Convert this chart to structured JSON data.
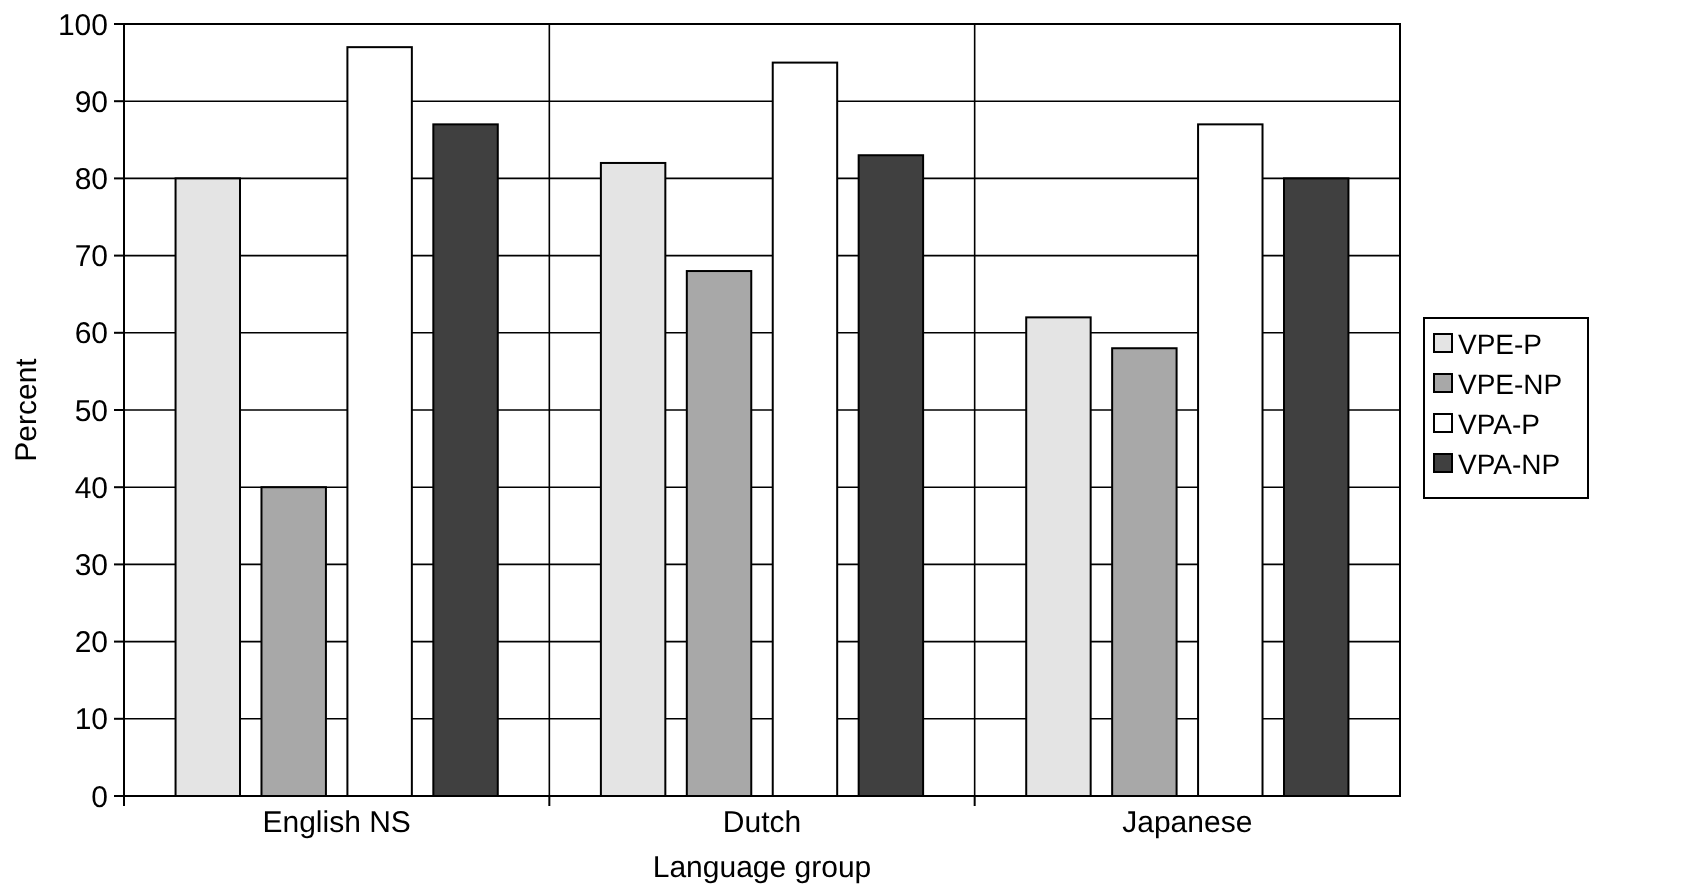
{
  "chart_data": {
    "type": "bar",
    "xlabel": "Language group",
    "ylabel": "Percent",
    "categories": [
      "English NS",
      "Dutch",
      "Japanese"
    ],
    "series": [
      {
        "name": "VPE-P",
        "color": "#e4e4e4",
        "values": [
          80,
          82,
          62
        ]
      },
      {
        "name": "VPE-NP",
        "color": "#a8a8a8",
        "values": [
          40,
          68,
          58
        ]
      },
      {
        "name": "VPA-P",
        "color": "#ffffff",
        "values": [
          97,
          95,
          87
        ]
      },
      {
        "name": "VPA-NP",
        "color": "#404040",
        "values": [
          87,
          83,
          80
        ]
      }
    ],
    "ylim": [
      0,
      100
    ],
    "yticks": [
      0,
      10,
      20,
      30,
      40,
      50,
      60,
      70,
      80,
      90,
      100
    ],
    "grid": true,
    "legend": "right"
  }
}
